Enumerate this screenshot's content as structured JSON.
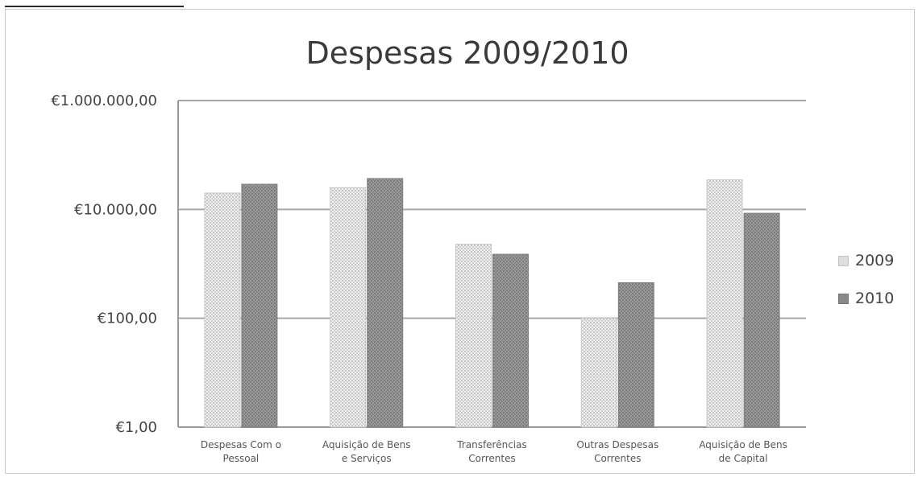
{
  "chart_data": {
    "type": "bar",
    "title": "Despesas 2009/2010",
    "xlabel": "",
    "ylabel": "",
    "yscale": "log",
    "ylim": [
      1,
      1000000
    ],
    "yticks": [
      {
        "value": 1,
        "label": "€1,00"
      },
      {
        "value": 100,
        "label": "€100,00"
      },
      {
        "value": 10000,
        "label": "€10.000,00"
      },
      {
        "value": 1000000,
        "label": "€1.000.000,00"
      }
    ],
    "categories": [
      [
        "Despesas Com o",
        "Pessoal"
      ],
      [
        "Aquisição de Bens",
        "e Serviços"
      ],
      [
        "Transferências",
        "Correntes"
      ],
      [
        "Outras Despesas",
        "Correntes"
      ],
      [
        "Aquisição de Bens",
        "de Capital"
      ]
    ],
    "series": [
      {
        "name": "2009",
        "values": [
          20000,
          25000,
          2300,
          100,
          35000
        ]
      },
      {
        "name": "2010",
        "values": [
          29000,
          37000,
          1500,
          450,
          8500
        ]
      }
    ],
    "grid": true,
    "legend_position": "right"
  },
  "colors": {
    "series_2009": "#dcdcdc",
    "series_2010": "#8c8c8c",
    "grid": "#a6a6a6",
    "axis": "#9a9a9a",
    "text": "#444444"
  }
}
